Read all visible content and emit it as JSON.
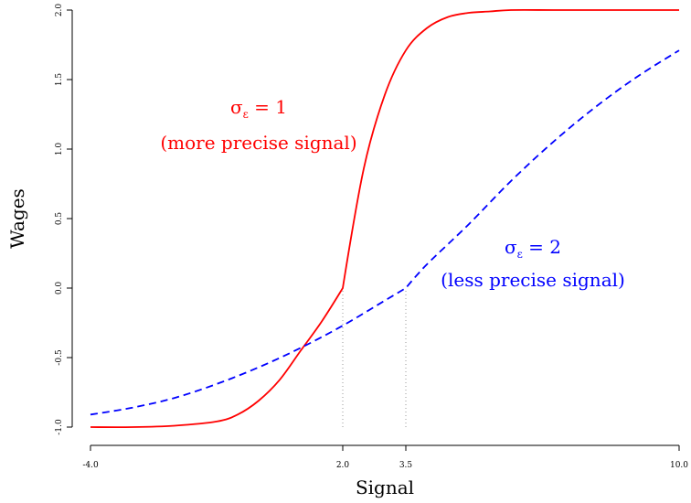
{
  "chart_data": {
    "type": "line",
    "xlabel": "Signal",
    "ylabel": "Wages",
    "xlim": [
      -4.0,
      10.0
    ],
    "ylim": [
      -1.0,
      2.0
    ],
    "x_ticks": [
      "-4.0",
      "2.0",
      "3.5",
      "10.0"
    ],
    "x_tick_values": [
      -4.0,
      2.0,
      3.5,
      10.0
    ],
    "y_ticks": [
      "-1.0",
      "-0.5",
      "0.0",
      "0.5",
      "1.0",
      "1.5",
      "2.0"
    ],
    "y_tick_values": [
      -1.0,
      -0.5,
      0.0,
      0.5,
      1.0,
      1.5,
      2.0
    ],
    "grid": false,
    "reference_lines": [
      {
        "x": 2.0,
        "y_from": -1.0,
        "y_to": 0.0,
        "style": "dotted",
        "color": "#999999"
      },
      {
        "x": 3.5,
        "y_from": -1.0,
        "y_to": 0.0,
        "style": "dotted",
        "color": "#999999"
      }
    ],
    "series": [
      {
        "color": "#ff0000",
        "dash": "solid",
        "x": [
          -4.0,
          -3.0,
          -2.0,
          -1.0,
          -0.5,
          0.0,
          0.5,
          1.0,
          1.5,
          2.0,
          2.5,
          3.0,
          3.5,
          4.0,
          4.5,
          5.0,
          5.5,
          6.0,
          7.0,
          8.0,
          9.0,
          10.0
        ],
        "values": [
          -1.0,
          -1.0,
          -0.99,
          -0.96,
          -0.91,
          -0.81,
          -0.66,
          -0.45,
          -0.24,
          0.0,
          0.86,
          1.39,
          1.71,
          1.87,
          1.95,
          1.98,
          1.99,
          2.0,
          2.0,
          2.0,
          2.0,
          2.0
        ]
      },
      {
        "color": "#0000ff",
        "dash": "dashed",
        "x": [
          -4.0,
          -3.0,
          -2.0,
          -1.0,
          0.0,
          1.0,
          2.0,
          3.0,
          3.5,
          4.0,
          5.0,
          6.0,
          7.0,
          8.0,
          9.0,
          10.0
        ],
        "values": [
          -0.91,
          -0.86,
          -0.79,
          -0.69,
          -0.57,
          -0.43,
          -0.27,
          -0.09,
          0.0,
          0.17,
          0.46,
          0.77,
          1.05,
          1.3,
          1.52,
          1.71
        ]
      }
    ],
    "annotations": [
      {
        "line1_sym": "σ",
        "line1_sub": "ε",
        "line1_rest": " = 1",
        "line2": "(more precise signal)",
        "color": "#ff0000"
      },
      {
        "line1_sym": "σ",
        "line1_sub": "ε",
        "line1_rest": " = 2",
        "line2": "(less precise signal)",
        "color": "#0000ff"
      }
    ]
  }
}
